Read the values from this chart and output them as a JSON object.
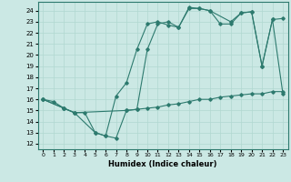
{
  "xlabel": "Humidex (Indice chaleur)",
  "bg_color": "#cbe8e4",
  "line_color": "#2d7a6e",
  "grid_color": "#b0d8d0",
  "xlim": [
    -0.5,
    23.5
  ],
  "ylim": [
    11.5,
    24.8
  ],
  "yticks": [
    12,
    13,
    14,
    15,
    16,
    17,
    18,
    19,
    20,
    21,
    22,
    23,
    24
  ],
  "xticks": [
    0,
    1,
    2,
    3,
    4,
    5,
    6,
    7,
    8,
    9,
    10,
    11,
    12,
    13,
    14,
    15,
    16,
    17,
    18,
    19,
    20,
    21,
    22,
    23
  ],
  "line1_x": [
    0,
    1,
    2,
    3,
    4,
    5,
    6,
    7,
    8,
    9,
    10,
    11,
    12,
    13,
    14,
    15,
    16,
    17,
    18,
    19,
    20,
    21,
    22,
    23
  ],
  "line1_y": [
    16,
    15.8,
    15.2,
    14.8,
    14.8,
    13.0,
    12.7,
    12.5,
    15.0,
    15.1,
    15.2,
    15.3,
    15.5,
    15.6,
    15.8,
    16.0,
    16.0,
    16.2,
    16.3,
    16.4,
    16.5,
    16.5,
    16.7,
    16.7
  ],
  "line2_x": [
    0,
    2,
    3,
    5,
    6,
    7,
    8,
    9,
    10,
    11,
    12,
    13,
    14,
    15,
    16,
    18,
    19,
    20,
    21,
    22,
    23
  ],
  "line2_y": [
    16,
    15.2,
    14.8,
    13.0,
    12.7,
    16.3,
    17.5,
    20.5,
    22.8,
    23.0,
    22.7,
    22.5,
    24.2,
    24.2,
    24.0,
    23.0,
    23.8,
    23.9,
    19.0,
    23.2,
    23.3
  ],
  "line3_x": [
    0,
    2,
    3,
    8,
    9,
    10,
    11,
    12,
    13,
    14,
    15,
    16,
    17,
    18,
    19,
    20,
    21,
    22,
    23
  ],
  "line3_y": [
    16,
    15.2,
    14.8,
    15.0,
    15.1,
    20.5,
    22.8,
    23.0,
    22.5,
    24.3,
    24.2,
    24.0,
    22.8,
    22.8,
    23.8,
    23.9,
    19.0,
    23.2,
    16.5
  ]
}
